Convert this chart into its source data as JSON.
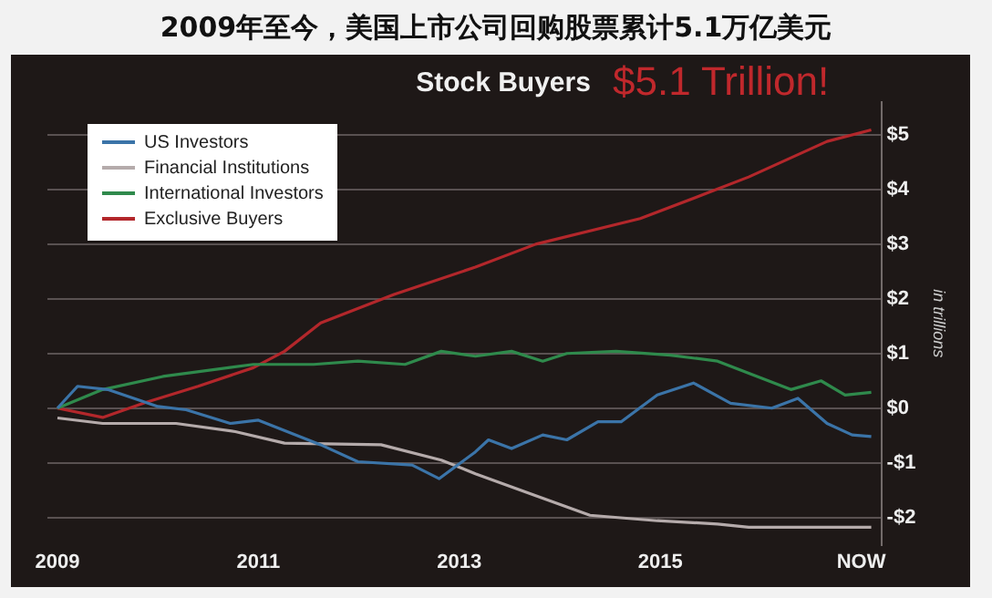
{
  "chart_data": {
    "type": "line",
    "title": "2009年至今，美国上市公司回购股票累计5.1万亿美元",
    "subtitle": "Stock Buyers",
    "ylabel": "in trillions",
    "annotations": [
      "$5.1 Trillion!"
    ],
    "xlim": [
      2008.9,
      2017.2
    ],
    "xticks": [
      2009,
      2011,
      2013,
      2015,
      {
        "value": 2017,
        "label": "NOW"
      }
    ],
    "ylim": [
      -2.5,
      5.6
    ],
    "yticks": [
      {
        "value": -2,
        "label": "-$2"
      },
      {
        "value": -1,
        "label": "-$1"
      },
      {
        "value": 0,
        "label": "$0"
      },
      {
        "value": 1,
        "label": "$1"
      },
      {
        "value": 2,
        "label": "$2"
      },
      {
        "value": 3,
        "label": "$3"
      },
      {
        "value": 4,
        "label": "$4"
      },
      {
        "value": 5,
        "label": "$5"
      }
    ],
    "grid": "y",
    "legend": "top left",
    "marker": "none",
    "line_style": "solid",
    "series": [
      {
        "name": "US Investors",
        "color": "#3b74a8",
        "x": [
          2009,
          2009.2,
          2009.5,
          2010.0,
          2010.28,
          2010.72,
          2011.0,
          2011.62,
          2011.99,
          2012.53,
          2012.8,
          2013.16,
          2013.29,
          2013.52,
          2013.83,
          2014.07,
          2014.38,
          2014.61,
          2014.97,
          2015.33,
          2015.7,
          2016.11,
          2016.37,
          2016.66,
          2016.91,
          2017.1
        ],
        "values": [
          0,
          0.4,
          0.34,
          0.03,
          -0.03,
          -0.28,
          -0.22,
          -0.67,
          -0.98,
          -1.04,
          -1.29,
          -0.8,
          -0.58,
          -0.74,
          -0.49,
          -0.58,
          -0.25,
          -0.25,
          0.24,
          0.46,
          0.09,
          0,
          0.18,
          -0.28,
          -0.49,
          -0.52
        ]
      },
      {
        "name": "Financial Institutions",
        "color": "#b5abab",
        "x": [
          2009,
          2009.45,
          2010.18,
          2010.77,
          2011.26,
          2012.22,
          2012.82,
          2013.16,
          2013.76,
          2014.3,
          2014.97,
          2015.57,
          2015.88,
          2017.1
        ],
        "values": [
          -0.18,
          -0.28,
          -0.28,
          -0.43,
          -0.64,
          -0.67,
          -0.95,
          -1.2,
          -1.6,
          -1.96,
          -2.06,
          -2.12,
          -2.18,
          -2.18
        ]
      },
      {
        "name": "International Investors",
        "color": "#2f8a4c",
        "x": [
          2009,
          2009.45,
          2010.05,
          2010.95,
          2011.55,
          2011.99,
          2012.46,
          2012.82,
          2013.16,
          2013.52,
          2013.83,
          2014.07,
          2014.56,
          2015.1,
          2015.57,
          2016.3,
          2016.6,
          2016.84,
          2017.1
        ],
        "values": [
          0,
          0.34,
          0.58,
          0.8,
          0.8,
          0.86,
          0.8,
          1.04,
          0.95,
          1.04,
          0.86,
          1.0,
          1.04,
          0.97,
          0.86,
          0.34,
          0.5,
          0.24,
          0.29
        ]
      },
      {
        "name": "Exclusive Buyers",
        "color": "#b3272b",
        "x": [
          2009,
          2009.45,
          2009.87,
          2010.4,
          2010.95,
          2011.26,
          2011.62,
          2012.35,
          2013.16,
          2013.76,
          2014.8,
          2015.46,
          2015.88,
          2016.66,
          2017.1
        ],
        "values": [
          0,
          -0.17,
          0.1,
          0.4,
          0.74,
          1.04,
          1.56,
          2.08,
          2.58,
          3.0,
          3.47,
          3.93,
          4.23,
          4.88,
          5.09
        ]
      }
    ]
  }
}
